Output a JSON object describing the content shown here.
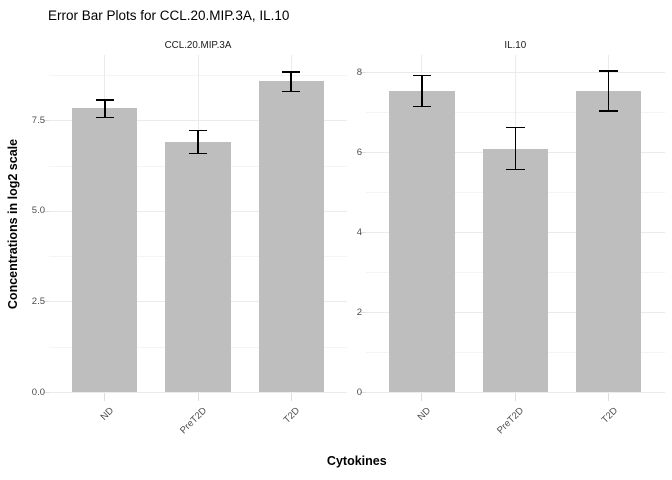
{
  "chart_data": {
    "type": "bar",
    "title": "Error Bar Plots for CCL.20.MIP.3A, IL.10",
    "xlabel": "Cytokines",
    "ylabel": "Concentrations in log2 scale",
    "categories": [
      "ND",
      "PreT2D",
      "T2D"
    ],
    "legend": "none",
    "grid": "on",
    "panels": [
      {
        "facet": "CCL.20.MIP.3A",
        "means": [
          7.85,
          6.93,
          8.59
        ],
        "error_low": [
          7.6,
          6.6,
          8.31
        ],
        "error_high": [
          8.08,
          7.24,
          8.85
        ],
        "ylim": [
          0,
          9.32
        ],
        "ytick_values": [
          0,
          2.5,
          5,
          7.5
        ],
        "ytick_labels": [
          "0.0",
          "2.5",
          "5.0",
          "7.5"
        ],
        "yminor_values": [
          1.25,
          3.75,
          6.25,
          8.75
        ]
      },
      {
        "facet": "IL.10",
        "means": [
          7.55,
          6.1,
          7.55
        ],
        "error_low": [
          7.16,
          5.58,
          7.05
        ],
        "error_high": [
          7.94,
          6.64,
          8.05
        ],
        "ylim": [
          0,
          8.45
        ],
        "ytick_values": [
          0,
          2,
          4,
          6,
          8
        ],
        "ytick_labels": [
          "0",
          "2",
          "4",
          "6",
          "8"
        ],
        "yminor_values": [
          1,
          3,
          5,
          7
        ]
      }
    ]
  },
  "colors": {
    "background": "#FFFFFF",
    "bar_fill": "#BEBEBE",
    "error_bar": "#000000",
    "grid_major": "#EBEBEB",
    "grid_minor": "#F4F4F4",
    "tick": "#DEDEDE",
    "axis_text": "#4D4D4D",
    "strip_text": "#1A1A1A",
    "title_text": "#000000"
  }
}
